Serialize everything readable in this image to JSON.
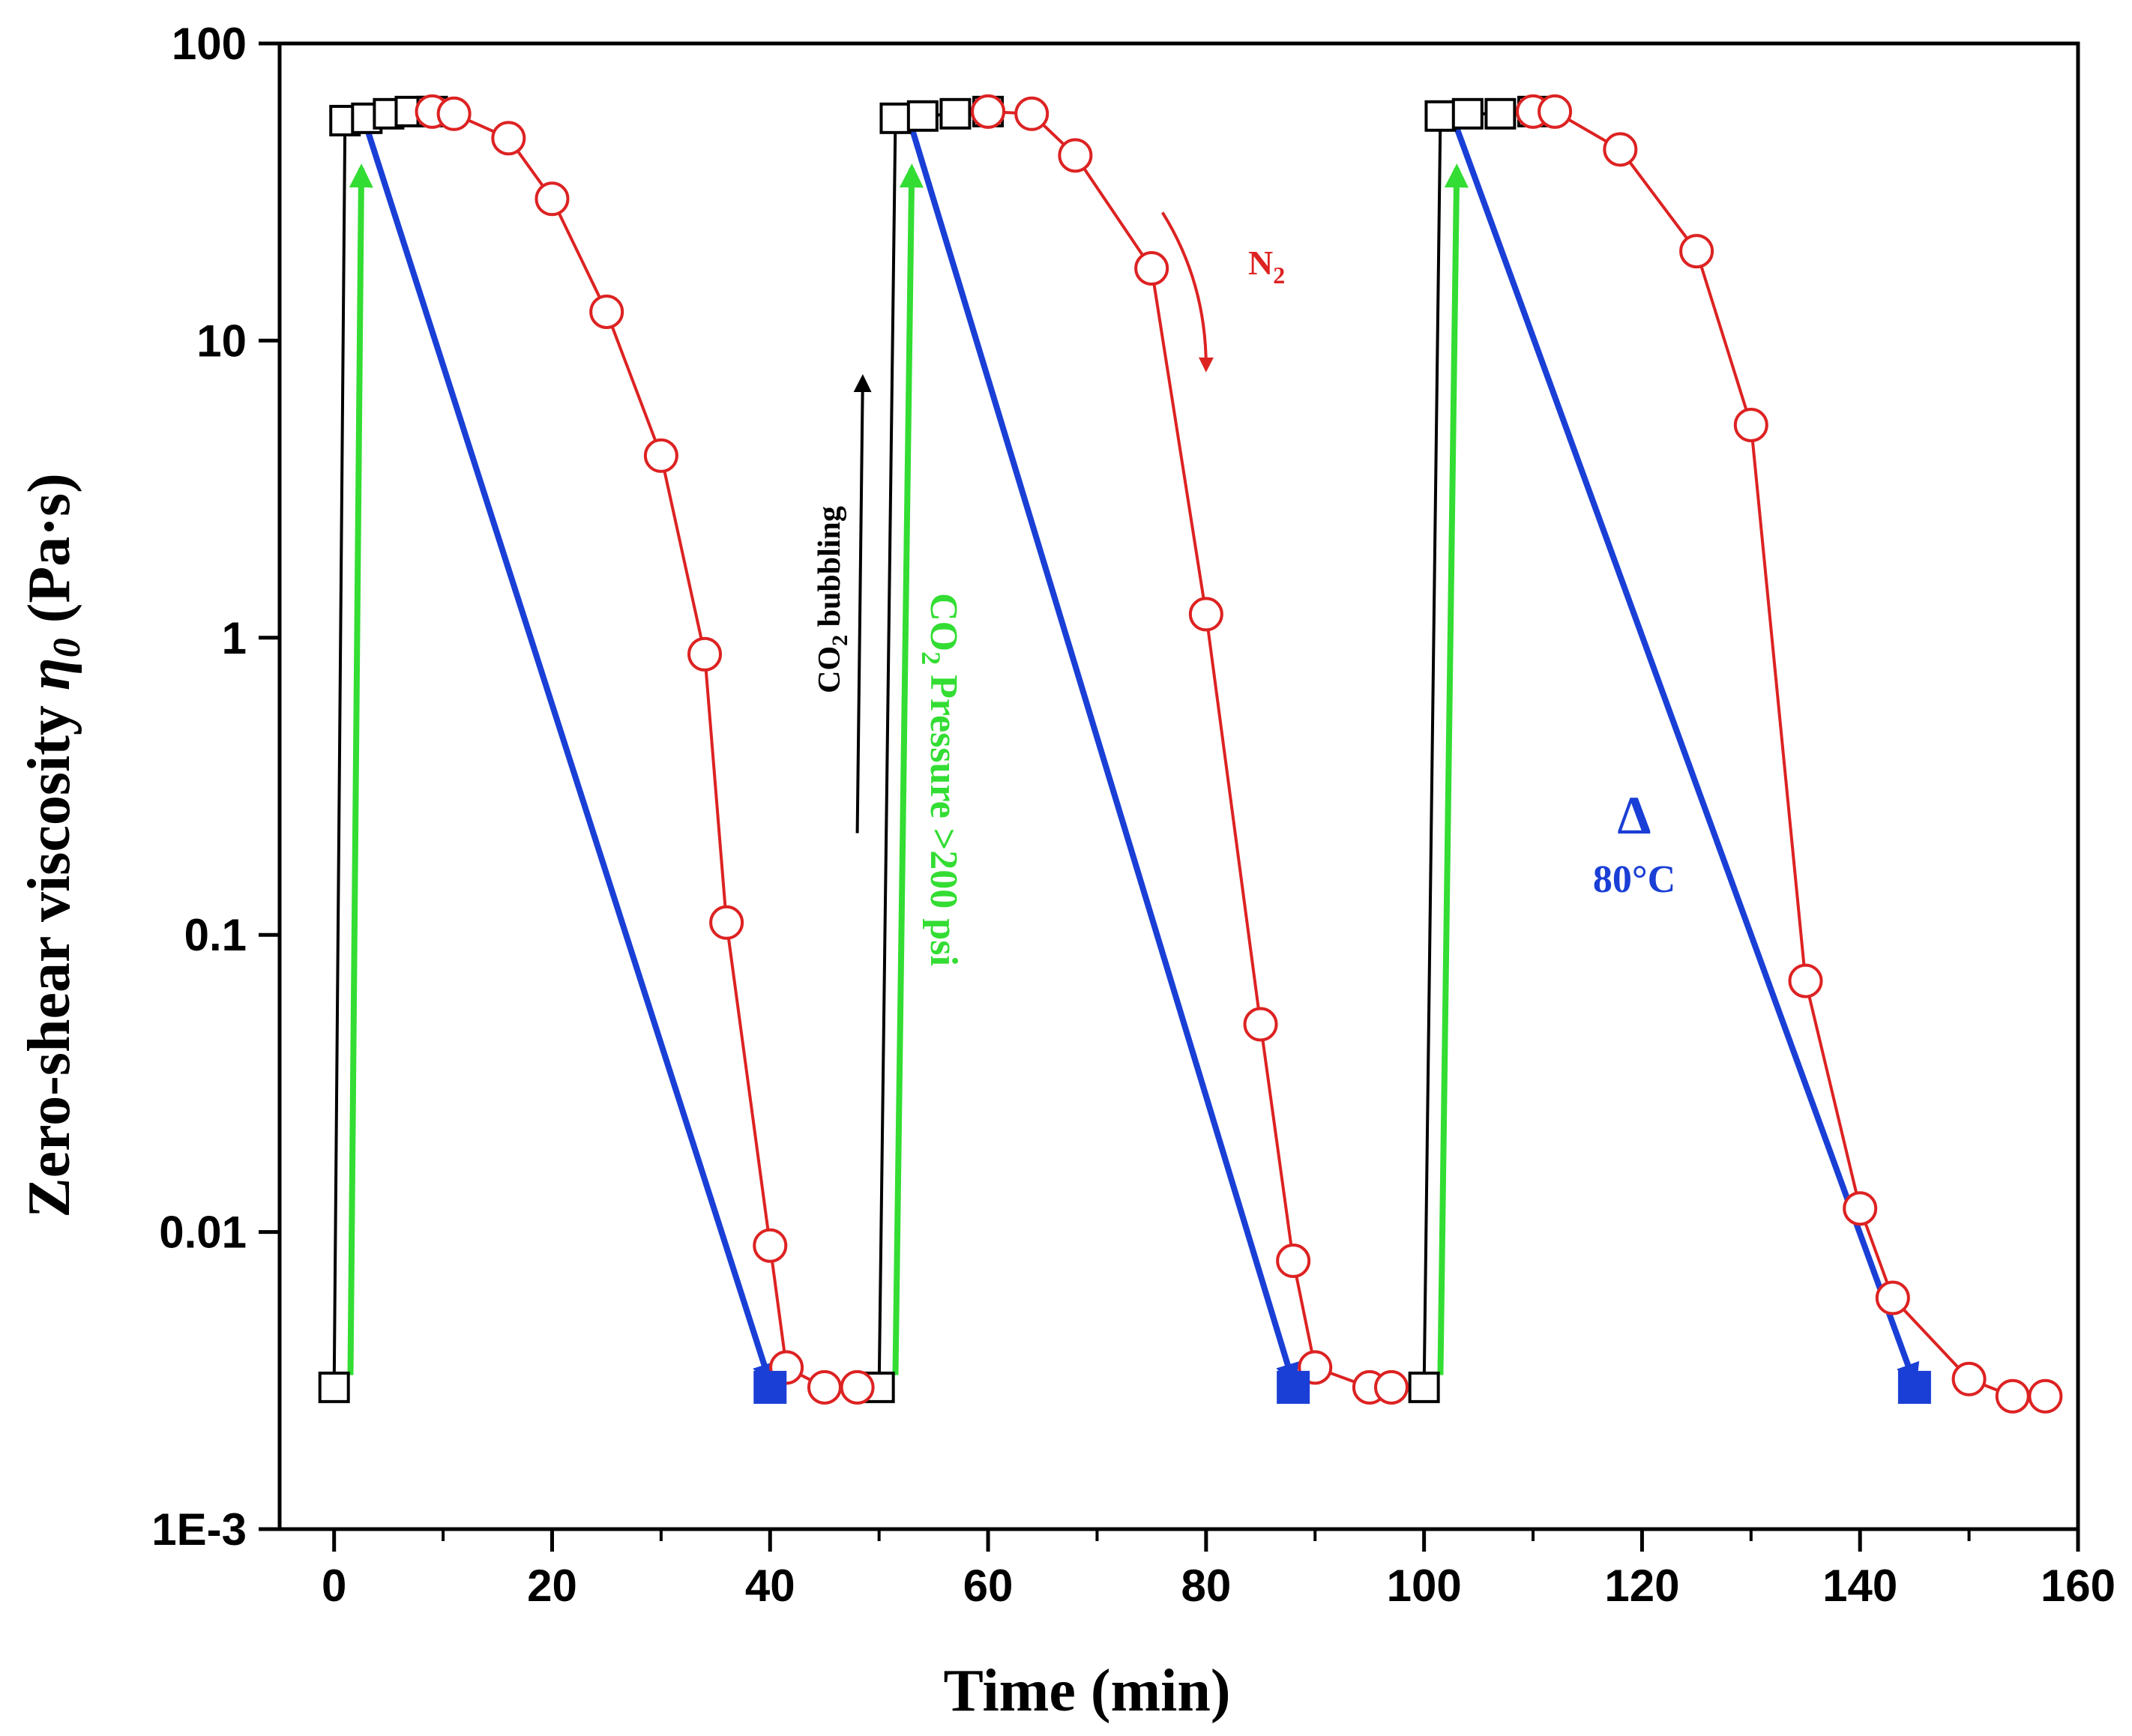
{
  "chart_data": {
    "type": "line",
    "xlabel": "Time (min)",
    "ylabel": {
      "prefix": "Zero-shear viscosity ",
      "symbol": "η",
      "sub": "0",
      "suffix": " (Pa·s)"
    },
    "xlim": [
      -5,
      160
    ],
    "ylim": [
      0.001,
      100
    ],
    "yscale": "log",
    "xticks": [
      0,
      20,
      40,
      60,
      80,
      100,
      120,
      140,
      160
    ],
    "xtick_labels": [
      "0",
      "20",
      "40",
      "60",
      "80",
      "100",
      "120",
      "140",
      "160"
    ],
    "yticks": [
      0.001,
      0.01,
      0.1,
      1,
      10,
      100
    ],
    "ytick_labels": [
      "1E-3",
      "0.01",
      "0.1",
      "1",
      "10",
      "100"
    ],
    "colors": {
      "co2": "#000000",
      "n2": "#dd2222",
      "heat": "#1a3fd6",
      "pressure": "#33dd33"
    },
    "series": [
      {
        "name": "CO2 bubbling (black open squares)",
        "marker": "open-square",
        "color": "#000000",
        "segments": [
          [
            [
              0,
              0.003
            ],
            [
              1,
              55
            ],
            [
              3,
              56
            ],
            [
              5,
              58
            ],
            [
              7,
              59
            ],
            [
              9,
              59
            ]
          ],
          [
            [
              50,
              0.003
            ],
            [
              51.5,
              56
            ],
            [
              54,
              57
            ],
            [
              57,
              58
            ],
            [
              60,
              59
            ]
          ],
          [
            [
              100,
              0.003
            ],
            [
              101.5,
              57
            ],
            [
              104,
              58
            ],
            [
              107,
              58
            ],
            [
              110,
              59
            ]
          ]
        ]
      },
      {
        "name": "N2 bubbling (red open circles)",
        "marker": "open-circle",
        "color": "#dd2222",
        "segments": [
          [
            [
              9,
              59
            ],
            [
              11,
              58
            ],
            [
              16,
              48
            ],
            [
              20,
              30
            ],
            [
              25,
              12.5
            ],
            [
              30,
              4.1
            ],
            [
              34,
              0.88
            ],
            [
              36,
              0.11
            ],
            [
              40,
              0.009
            ],
            [
              41.5,
              0.0035
            ],
            [
              45,
              0.003
            ],
            [
              48,
              0.003
            ]
          ],
          [
            [
              60,
              59
            ],
            [
              64,
              58
            ],
            [
              68,
              42
            ],
            [
              75,
              17.5
            ],
            [
              80,
              1.2
            ],
            [
              85,
              0.05
            ],
            [
              88,
              0.008
            ],
            [
              90,
              0.0035
            ],
            [
              95,
              0.003
            ],
            [
              97,
              0.003
            ]
          ],
          [
            [
              110,
              59
            ],
            [
              112,
              59
            ],
            [
              118,
              44
            ],
            [
              125,
              20
            ],
            [
              130,
              5.2
            ],
            [
              135,
              0.07
            ],
            [
              140,
              0.012
            ],
            [
              143,
              0.006
            ],
            [
              150,
              0.0032
            ],
            [
              154,
              0.0028
            ],
            [
              157,
              0.0028
            ]
          ]
        ]
      },
      {
        "name": "80°C heating (blue filled squares)",
        "marker": "filled-square",
        "color": "#1a3fd6",
        "points": [
          [
            40,
            0.003
          ],
          [
            88,
            0.003
          ],
          [
            145,
            0.003
          ]
        ]
      }
    ],
    "arrows": [
      {
        "name": "co2-pressure-arrow-1",
        "color": "#33dd33",
        "from": [
          1.5,
          0.0033
        ],
        "to": [
          2.5,
          38
        ]
      },
      {
        "name": "co2-pressure-arrow-2",
        "color": "#33dd33",
        "from": [
          51.5,
          0.0033
        ],
        "to": [
          53,
          38
        ]
      },
      {
        "name": "co2-pressure-arrow-3",
        "color": "#33dd33",
        "from": [
          101.5,
          0.0033
        ],
        "to": [
          103,
          38
        ]
      },
      {
        "name": "heat-arrow-1",
        "color": "#1a3fd6",
        "from": [
          3,
          52
        ],
        "to": [
          40,
          0.0031
        ]
      },
      {
        "name": "heat-arrow-2",
        "color": "#1a3fd6",
        "from": [
          53,
          52
        ],
        "to": [
          88,
          0.0031
        ]
      },
      {
        "name": "heat-arrow-3",
        "color": "#1a3fd6",
        "from": [
          103,
          52
        ],
        "to": [
          145,
          0.0031
        ]
      },
      {
        "name": "co2-bubbling-arrow",
        "color": "#000000",
        "from": [
          48,
          0.22
        ],
        "to": [
          48.5,
          7.5
        ]
      },
      {
        "name": "n2-curved-arrow",
        "color": "#dd2222",
        "from": [
          76,
          27
        ],
        "to": [
          80,
          8
        ]
      }
    ],
    "annotations": {
      "n2": {
        "base": "N",
        "sub": "2"
      },
      "co2_bubbling": {
        "pre": "CO",
        "sub": "2",
        "post": " bubbling"
      },
      "co2_pressure": {
        "pre": "CO",
        "sub": "2",
        "post": " Pressure >200 psi"
      },
      "heat_symbol": "Δ",
      "heat_temp": "80°C"
    }
  }
}
